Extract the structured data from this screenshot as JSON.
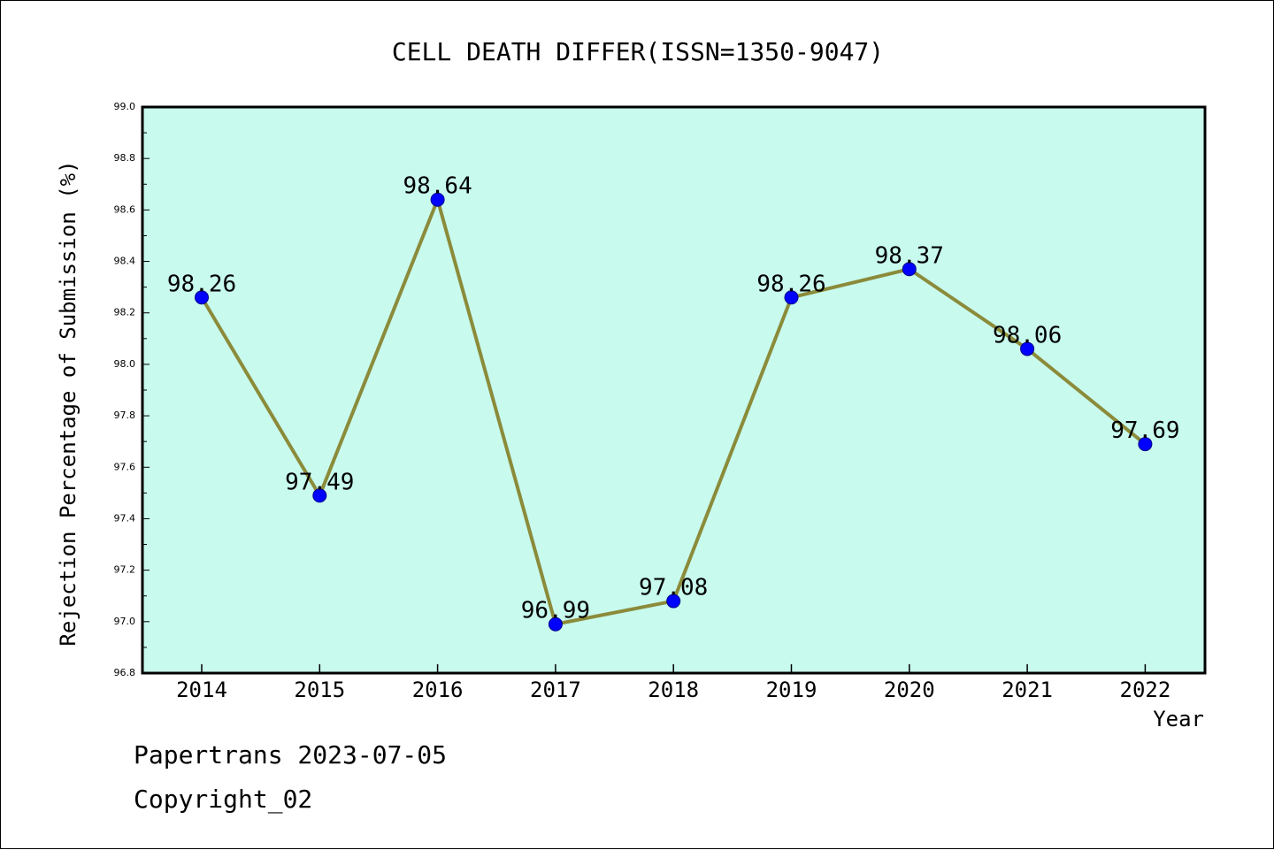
{
  "chart_data": {
    "type": "line",
    "title": "CELL DEATH DIFFER(ISSN=1350-9047)",
    "xlabel": "Year",
    "ylabel": "Rejection Percentage of Submission (%)",
    "categories": [
      "2014",
      "2015",
      "2016",
      "2017",
      "2018",
      "2019",
      "2020",
      "2021",
      "2022"
    ],
    "series": [
      {
        "values": [
          98.26,
          97.49,
          98.64,
          96.99,
          97.08,
          98.26,
          98.37,
          98.06,
          97.69
        ],
        "labels": [
          "98.26",
          "97.49",
          "98.64",
          "96.99",
          "97.08",
          "98.26",
          "98.37",
          "98.06",
          "97.69"
        ]
      }
    ],
    "ylim": [
      96.8,
      99.0
    ],
    "yticks": [
      "96.8",
      "97.0",
      "97.2",
      "97.4",
      "97.6",
      "97.8",
      "98.0",
      "98.2",
      "98.4",
      "98.6",
      "98.8",
      "99.0"
    ],
    "grid": false,
    "legend": "none",
    "colors": {
      "plot_background": "#c8faee",
      "line": "#8b8b3a",
      "marker": "#0000ff",
      "marker_edge": "#00008b",
      "axes": "#000000"
    }
  },
  "footer": {
    "line1": "Papertrans 2023-07-05",
    "line2": "Copyright_02"
  }
}
